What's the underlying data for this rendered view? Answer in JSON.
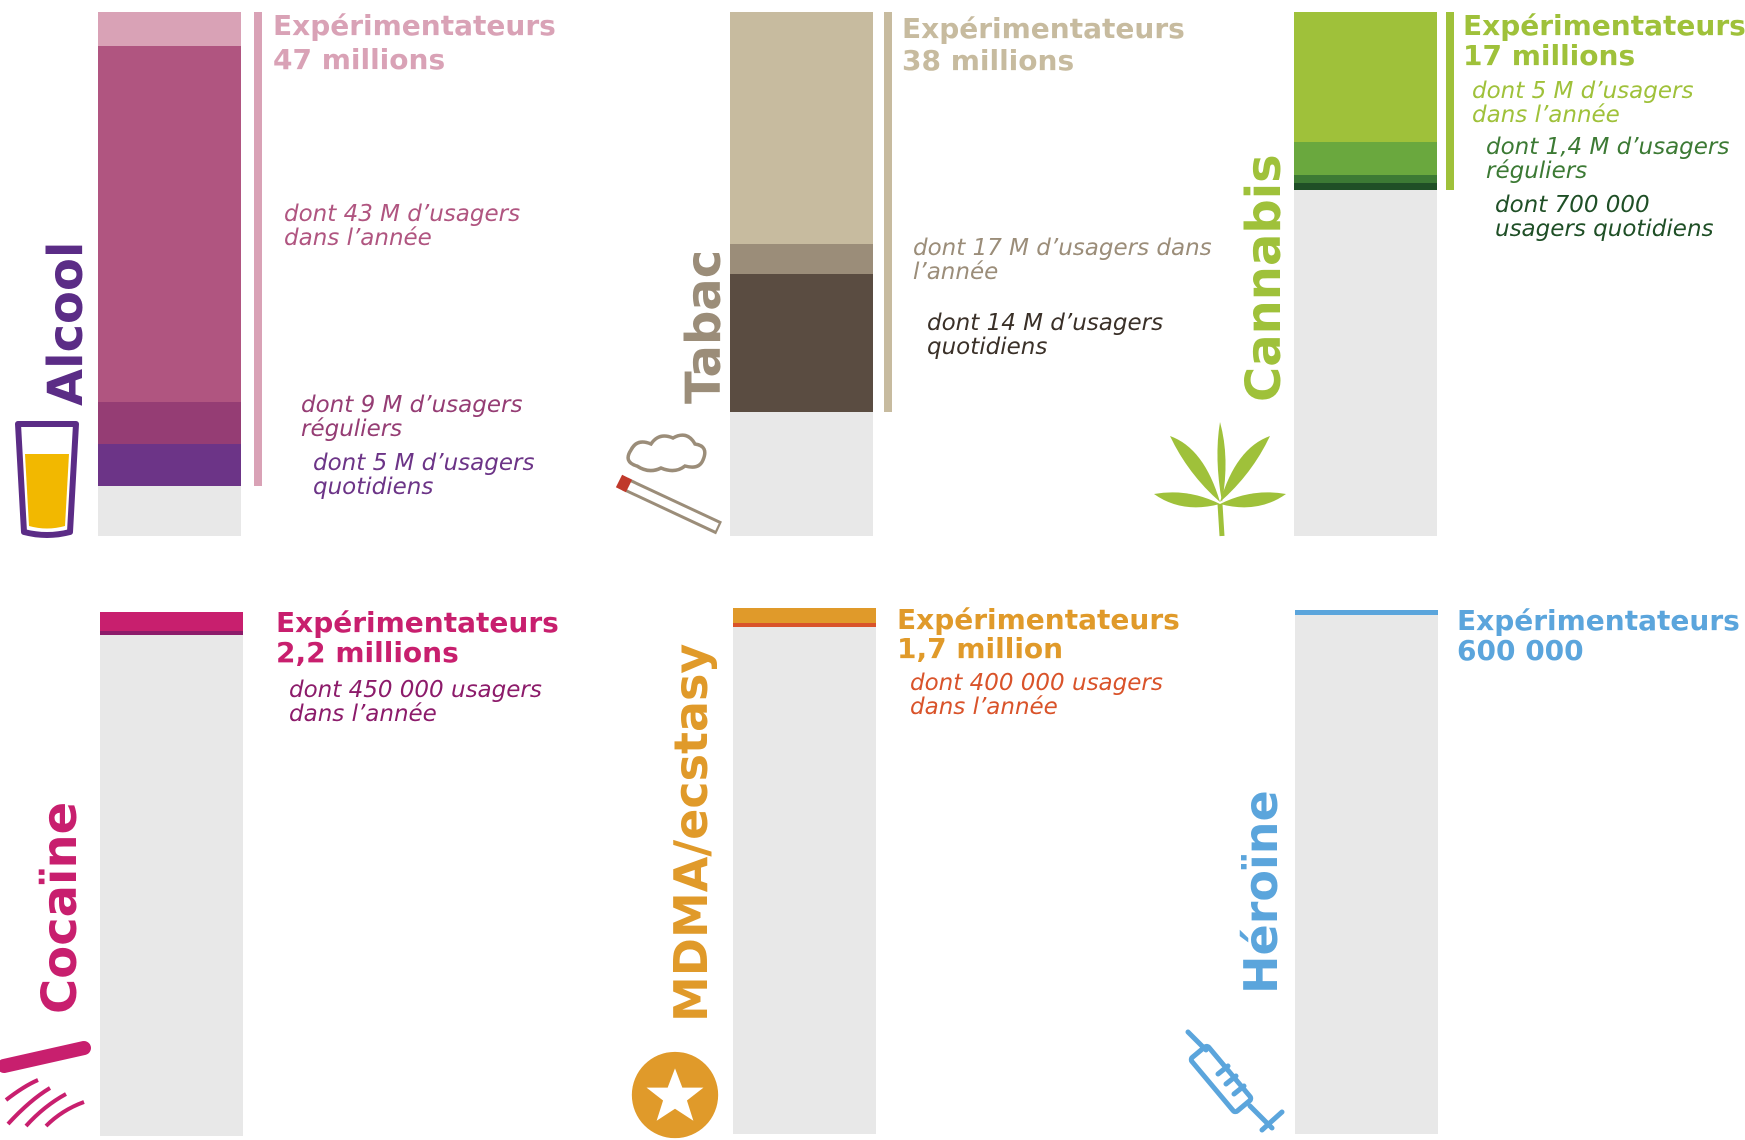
{
  "chart_data": {
    "type": "bar",
    "unit": "millions",
    "panels": [
      {
        "name": "Alcool",
        "color": "#b05580",
        "icon": "beer-glass-icon",
        "title": "Expérimentateurs",
        "headline": "47 millions",
        "values": {
          "experimenters": 47,
          "annual": 43,
          "regular": 9,
          "daily": 5
        },
        "notes": [
          "dont 43 M d’usagers dans l’année",
          "dont 9 M d’usagers réguliers",
          "dont 5 M d’usagers quotidiens"
        ]
      },
      {
        "name": "Tabac",
        "color": "#c7bb9f",
        "icon": "cigarette-icon",
        "title": "Expérimentateurs",
        "headline": "38 millions",
        "values": {
          "experimenters": 38,
          "annual": 17,
          "daily": 14
        },
        "notes": [
          "dont 17 M d’usagers dans l’année",
          "dont 14 M d’usagers quotidiens"
        ]
      },
      {
        "name": "Cannabis",
        "color": "#9fc13a",
        "icon": "cannabis-leaf-icon",
        "title": "Expérimentateurs",
        "headline": "17 millions",
        "values": {
          "experimenters": 17,
          "annual": 5,
          "regular": 1.4,
          "daily": 0.7
        },
        "notes": [
          "dont 5 M d’usagers dans l’année",
          "dont 1,4 M d’usagers réguliers",
          "dont 700 000 usagers quotidiens"
        ]
      },
      {
        "name": "Cocaïne",
        "color": "#c81f6e",
        "icon": "cocaine-lines-icon",
        "title": "Expérimentateurs",
        "headline": "2,2 millions",
        "values": {
          "experimenters": 2.2,
          "annual": 0.45
        },
        "notes": [
          "dont 450 000 usagers dans l’année"
        ]
      },
      {
        "name": "MDMA/ecstasy",
        "color": "#e09a2a",
        "icon": "ecstasy-star-icon",
        "title": "Expérimentateurs",
        "headline": "1,7 million",
        "values": {
          "experimenters": 1.7,
          "annual": 0.4
        },
        "notes": [
          "dont 400 000 usagers dans l’année"
        ]
      },
      {
        "name": "Héroïne",
        "color": "#5ba5dc",
        "icon": "syringe-icon",
        "title": "Expérimentateurs",
        "headline": "600 000",
        "values": {
          "experimenters": 0.6
        },
        "notes": []
      }
    ]
  }
}
